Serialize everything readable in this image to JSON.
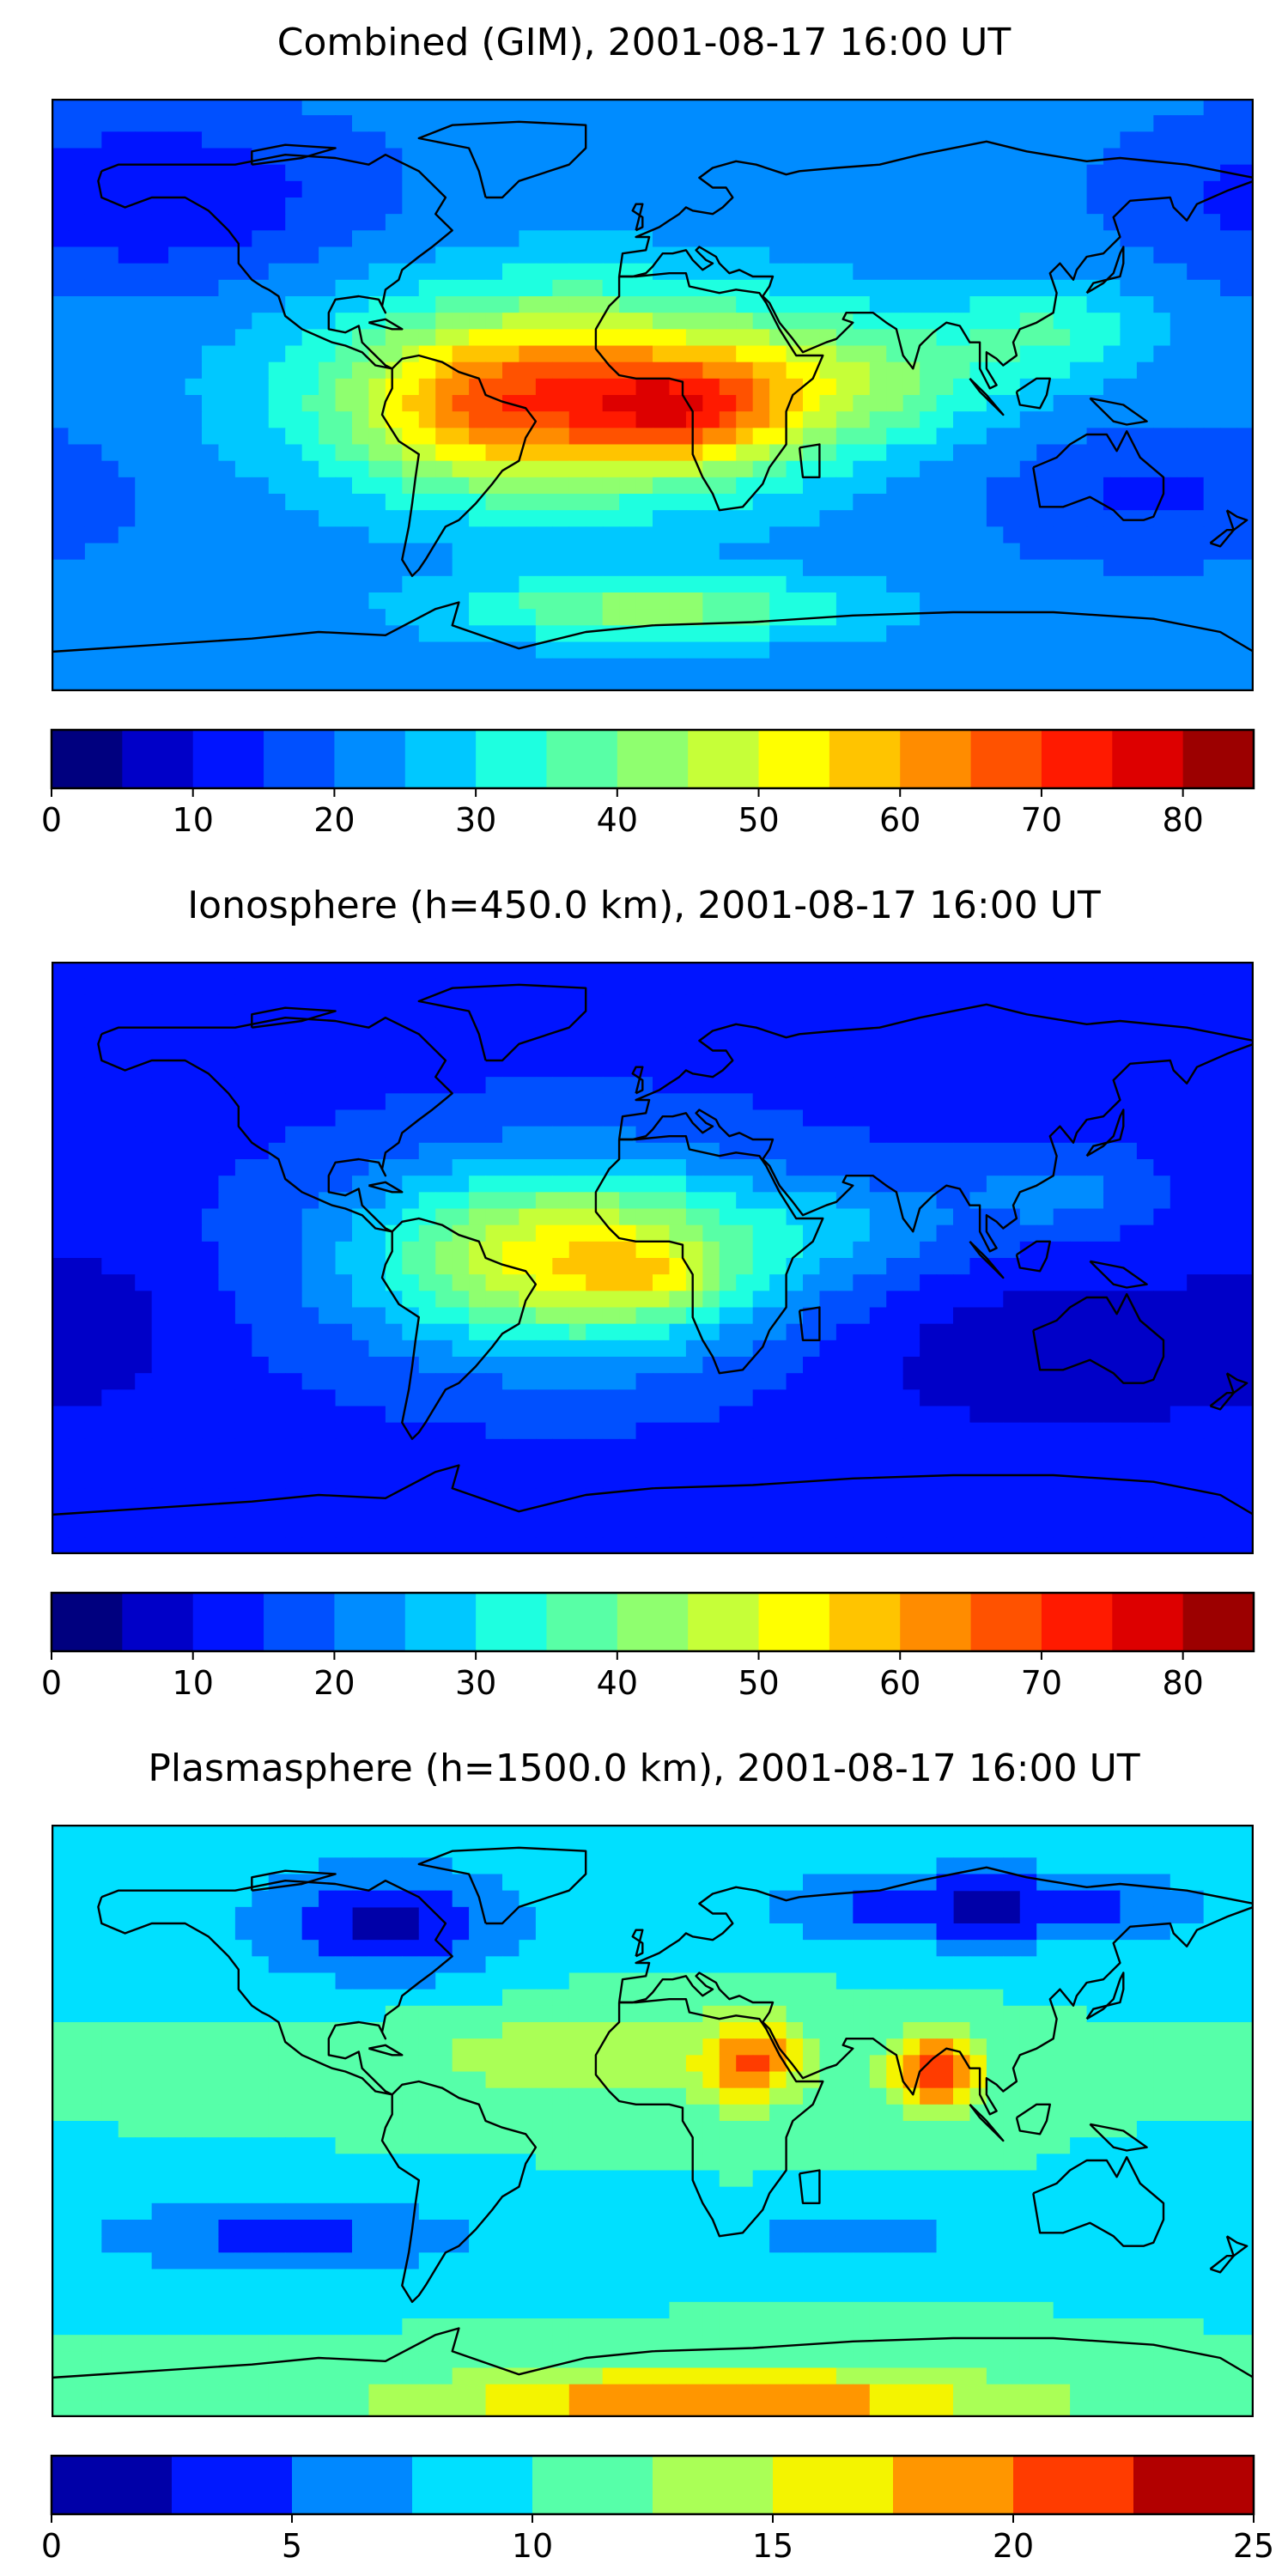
{
  "panels": [
    {
      "id": "combined",
      "title": "Combined (GIM), 2001-08-17 16:00 UT",
      "colorbar": {
        "min": 0,
        "max": 85,
        "step": 5,
        "ticks": [
          "0",
          "10",
          "20",
          "30",
          "40",
          "50",
          "60",
          "70",
          "80"
        ],
        "tick_values": [
          0,
          10,
          20,
          30,
          40,
          50,
          60,
          70,
          80
        ],
        "colors": [
          "#00007f",
          "#0000c8",
          "#0014ff",
          "#0050ff",
          "#008cff",
          "#00c8ff",
          "#1effe0",
          "#58ffa6",
          "#8fff6f",
          "#c6ff38",
          "#ffff00",
          "#ffc400",
          "#ff8c00",
          "#ff5200",
          "#ff1a00",
          "#dd0000",
          "#9c0000"
        ]
      },
      "field": {
        "base": 22,
        "blobs": [
          {
            "lon": -25,
            "lat": 0,
            "amp": 42,
            "rlon": 70,
            "rlat": 30
          },
          {
            "lon": 10,
            "lat": -5,
            "amp": 20,
            "rlon": 30,
            "rlat": 15
          },
          {
            "lon": -55,
            "lat": -5,
            "amp": 10,
            "rlon": 30,
            "rlat": 20
          },
          {
            "lon": 60,
            "lat": 5,
            "amp": 15,
            "rlon": 45,
            "rlat": 20
          },
          {
            "lon": 120,
            "lat": 20,
            "amp": 12,
            "rlon": 30,
            "rlat": 15
          },
          {
            "lon": 0,
            "lat": -65,
            "amp": 20,
            "rlon": 60,
            "rlat": 10
          },
          {
            "lon": -150,
            "lat": 60,
            "amp": -12,
            "rlon": 60,
            "rlat": 25
          },
          {
            "lon": 150,
            "lat": -30,
            "amp": -8,
            "rlon": 50,
            "rlat": 20
          }
        ]
      }
    },
    {
      "id": "ionosphere",
      "title": "Ionosphere  (h=450.0 km), 2001-08-17 16:00 UT",
      "colorbar": {
        "min": 0,
        "max": 85,
        "step": 5,
        "ticks": [
          "0",
          "10",
          "20",
          "30",
          "40",
          "50",
          "60",
          "70",
          "80"
        ],
        "tick_values": [
          0,
          10,
          20,
          30,
          40,
          50,
          60,
          70,
          80
        ],
        "colors": [
          "#00007f",
          "#0000c8",
          "#0014ff",
          "#0050ff",
          "#008cff",
          "#00c8ff",
          "#1effe0",
          "#58ffa6",
          "#8fff6f",
          "#c6ff38",
          "#ffff00",
          "#ffc400",
          "#ff8c00",
          "#ff5200",
          "#ff1a00",
          "#dd0000",
          "#9c0000"
        ]
      },
      "field": {
        "base": 14,
        "blobs": [
          {
            "lon": -25,
            "lat": 0,
            "amp": 40,
            "rlon": 60,
            "rlat": 28
          },
          {
            "lon": 0,
            "lat": -5,
            "amp": 10,
            "rlon": 20,
            "rlat": 10
          },
          {
            "lon": 60,
            "lat": 10,
            "amp": 8,
            "rlon": 40,
            "rlat": 15
          },
          {
            "lon": 120,
            "lat": 20,
            "amp": 8,
            "rlon": 25,
            "rlat": 12
          },
          {
            "lon": 120,
            "lat": -30,
            "amp": -8,
            "rlon": 60,
            "rlat": 25
          },
          {
            "lon": -170,
            "lat": -20,
            "amp": -6,
            "rlon": 30,
            "rlat": 25
          }
        ]
      }
    },
    {
      "id": "plasmasphere",
      "title": "Plasmasphere (h=1500.0 km), 2001-08-17 16:00 UT",
      "colorbar": {
        "min": 0,
        "max": 25,
        "step": 2.5,
        "ticks": [
          "0",
          "5",
          "10",
          "15",
          "20",
          "25"
        ],
        "tick_values": [
          0,
          5,
          10,
          15,
          20,
          25
        ],
        "colors": [
          "#0000a8",
          "#0018ff",
          "#0088ff",
          "#00e0ff",
          "#56ffa9",
          "#aaff56",
          "#f4f400",
          "#ff9600",
          "#ff3c00",
          "#b20000"
        ]
      },
      "field": {
        "base": 10,
        "blobs": [
          {
            "lon": 30,
            "lat": 18,
            "amp": 9,
            "rlon": 15,
            "rlat": 14
          },
          {
            "lon": 85,
            "lat": 15,
            "amp": 12,
            "rlon": 14,
            "rlat": 12
          },
          {
            "lon": -80,
            "lat": 60,
            "amp": -8,
            "rlon": 40,
            "rlat": 18
          },
          {
            "lon": 100,
            "lat": 65,
            "amp": -8,
            "rlon": 60,
            "rlat": 12
          },
          {
            "lon": 60,
            "lat": -35,
            "amp": -5,
            "rlon": 30,
            "rlat": 8
          },
          {
            "lon": -110,
            "lat": -35,
            "amp": -6,
            "rlon": 60,
            "rlat": 12
          },
          {
            "lon": 20,
            "lat": -85,
            "amp": 10,
            "rlon": 90,
            "rlat": 10
          },
          {
            "lon": -20,
            "lat": 20,
            "amp": 4,
            "rlon": 60,
            "rlat": 15
          }
        ]
      }
    }
  ]
}
